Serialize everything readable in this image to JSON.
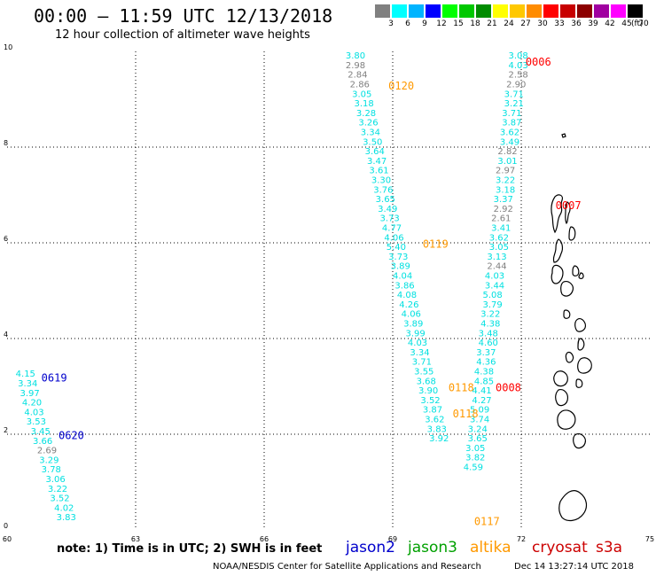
{
  "header": {
    "title": "00:00 – 11:59 UTC 12/13/2018",
    "subtitle": "12 hour collection of altimeter wave heights"
  },
  "colorbar": {
    "swatches": [
      {
        "color": "#808080",
        "label": "3"
      },
      {
        "color": "#00ffff",
        "label": "6"
      },
      {
        "color": "#00b4ff",
        "label": "9"
      },
      {
        "color": "#0000ff",
        "label": "12"
      },
      {
        "color": "#00ff00",
        "label": "15"
      },
      {
        "color": "#00c800",
        "label": "18"
      },
      {
        "color": "#008c00",
        "label": "21"
      },
      {
        "color": "#ffff00",
        "label": "24"
      },
      {
        "color": "#ffc800",
        "label": "27"
      },
      {
        "color": "#ff8c00",
        "label": "30"
      },
      {
        "color": "#ff0000",
        "label": "33"
      },
      {
        "color": "#c80000",
        "label": "36"
      },
      {
        "color": "#8c0000",
        "label": "39"
      },
      {
        "color": "#a000a0",
        "label": "42"
      },
      {
        "color": "#ff00ff",
        "label": "45"
      },
      {
        "color": "#000000",
        "label": "70"
      }
    ],
    "unit": "(ft)"
  },
  "map": {
    "x_ticks": [
      "60",
      "63",
      "66",
      "69",
      "72",
      "75"
    ],
    "y_ticks": [
      "0",
      "2",
      "4",
      "6",
      "8",
      "10"
    ],
    "lon_range": [
      60,
      75
    ],
    "lat_range": [
      0,
      10
    ],
    "track_labels": [
      {
        "text": "0006",
        "color": "#ff0000",
        "lon": 72.1,
        "lat": 9.7
      },
      {
        "text": "0120",
        "color": "#ff9900",
        "lon": 68.9,
        "lat": 9.2
      },
      {
        "text": "0007",
        "color": "#ff0000",
        "lon": 72.8,
        "lat": 6.7
      },
      {
        "text": "0119",
        "color": "#ff9900",
        "lon": 69.7,
        "lat": 5.9
      },
      {
        "text": "0619",
        "color": "#0000cc",
        "lon": 60.8,
        "lat": 3.1
      },
      {
        "text": "0620",
        "color": "#0000cc",
        "lon": 61.2,
        "lat": 1.9
      },
      {
        "text": "0118",
        "color": "#ff9900",
        "lon": 70.3,
        "lat": 2.9
      },
      {
        "text": "0008",
        "color": "#ff0000",
        "lon": 71.4,
        "lat": 2.9
      },
      {
        "text": "0118",
        "color": "#ff9900",
        "lon": 70.4,
        "lat": 2.35
      },
      {
        "text": "0117",
        "color": "#ff9900",
        "lon": 70.9,
        "lat": 0.1
      }
    ],
    "wave_heights": [
      {
        "v": "3.80",
        "c": "#00e0e0",
        "lon": 67.9,
        "lat": 9.85
      },
      {
        "v": "2.98",
        "c": "#808080",
        "lon": 67.9,
        "lat": 9.65
      },
      {
        "v": "2.84",
        "c": "#808080",
        "lon": 67.95,
        "lat": 9.45
      },
      {
        "v": "2.86",
        "c": "#808080",
        "lon": 68.0,
        "lat": 9.25
      },
      {
        "v": "3.05",
        "c": "#00e0e0",
        "lon": 68.05,
        "lat": 9.05
      },
      {
        "v": "3.18",
        "c": "#00e0e0",
        "lon": 68.1,
        "lat": 8.85
      },
      {
        "v": "3.28",
        "c": "#00e0e0",
        "lon": 68.15,
        "lat": 8.65
      },
      {
        "v": "3.26",
        "c": "#00e0e0",
        "lon": 68.2,
        "lat": 8.45
      },
      {
        "v": "3.34",
        "c": "#00e0e0",
        "lon": 68.25,
        "lat": 8.25
      },
      {
        "v": "3.50",
        "c": "#00e0e0",
        "lon": 68.3,
        "lat": 8.05
      },
      {
        "v": "3.64",
        "c": "#00e0e0",
        "lon": 68.35,
        "lat": 7.85
      },
      {
        "v": "3.47",
        "c": "#00e0e0",
        "lon": 68.4,
        "lat": 7.65
      },
      {
        "v": "3.61",
        "c": "#00e0e0",
        "lon": 68.45,
        "lat": 7.45
      },
      {
        "v": "3.30",
        "c": "#00e0e0",
        "lon": 68.5,
        "lat": 7.25
      },
      {
        "v": "3.76",
        "c": "#00e0e0",
        "lon": 68.55,
        "lat": 7.05
      },
      {
        "v": "3.65",
        "c": "#00e0e0",
        "lon": 68.6,
        "lat": 6.85
      },
      {
        "v": "3.49",
        "c": "#00e0e0",
        "lon": 68.65,
        "lat": 6.65
      },
      {
        "v": "3.73",
        "c": "#00e0e0",
        "lon": 68.7,
        "lat": 6.45
      },
      {
        "v": "4.77",
        "c": "#00e0e0",
        "lon": 68.75,
        "lat": 6.25
      },
      {
        "v": "4.06",
        "c": "#00e0e0",
        "lon": 68.8,
        "lat": 6.05
      },
      {
        "v": "5.40",
        "c": "#00e0e0",
        "lon": 68.85,
        "lat": 5.85
      },
      {
        "v": "3.73",
        "c": "#00e0e0",
        "lon": 68.9,
        "lat": 5.65
      },
      {
        "v": "3.89",
        "c": "#00e0e0",
        "lon": 68.95,
        "lat": 5.45
      },
      {
        "v": "4.04",
        "c": "#00e0e0",
        "lon": 69.0,
        "lat": 5.25
      },
      {
        "v": "3.86",
        "c": "#00e0e0",
        "lon": 69.05,
        "lat": 5.05
      },
      {
        "v": "4.08",
        "c": "#00e0e0",
        "lon": 69.1,
        "lat": 4.85
      },
      {
        "v": "4.26",
        "c": "#00e0e0",
        "lon": 69.15,
        "lat": 4.65
      },
      {
        "v": "4.06",
        "c": "#00e0e0",
        "lon": 69.2,
        "lat": 4.45
      },
      {
        "v": "3.89",
        "c": "#00e0e0",
        "lon": 69.25,
        "lat": 4.25
      },
      {
        "v": "3.99",
        "c": "#00e0e0",
        "lon": 69.3,
        "lat": 4.05
      },
      {
        "v": "4.03",
        "c": "#00e0e0",
        "lon": 69.35,
        "lat": 3.85
      },
      {
        "v": "3.34",
        "c": "#00e0e0",
        "lon": 69.4,
        "lat": 3.65
      },
      {
        "v": "3.71",
        "c": "#00e0e0",
        "lon": 69.45,
        "lat": 3.45
      },
      {
        "v": "3.55",
        "c": "#00e0e0",
        "lon": 69.5,
        "lat": 3.25
      },
      {
        "v": "3.68",
        "c": "#00e0e0",
        "lon": 69.55,
        "lat": 3.05
      },
      {
        "v": "3.90",
        "c": "#00e0e0",
        "lon": 69.6,
        "lat": 2.85
      },
      {
        "v": "3.52",
        "c": "#00e0e0",
        "lon": 69.65,
        "lat": 2.65
      },
      {
        "v": "3.87",
        "c": "#00e0e0",
        "lon": 69.7,
        "lat": 2.45
      },
      {
        "v": "3.62",
        "c": "#00e0e0",
        "lon": 69.75,
        "lat": 2.25
      },
      {
        "v": "3.83",
        "c": "#00e0e0",
        "lon": 69.8,
        "lat": 2.05
      },
      {
        "v": "3.92",
        "c": "#00e0e0",
        "lon": 69.85,
        "lat": 1.85
      },
      {
        "v": "3.08",
        "c": "#00e0e0",
        "lon": 71.7,
        "lat": 9.85
      },
      {
        "v": "4.03",
        "c": "#00e0e0",
        "lon": 71.7,
        "lat": 9.65
      },
      {
        "v": "2.58",
        "c": "#808080",
        "lon": 71.7,
        "lat": 9.45
      },
      {
        "v": "2.90",
        "c": "#808080",
        "lon": 71.65,
        "lat": 9.25
      },
      {
        "v": "3.71",
        "c": "#00e0e0",
        "lon": 71.6,
        "lat": 9.05
      },
      {
        "v": "3.21",
        "c": "#00e0e0",
        "lon": 71.6,
        "lat": 8.85
      },
      {
        "v": "3.71",
        "c": "#00e0e0",
        "lon": 71.55,
        "lat": 8.65
      },
      {
        "v": "3.87",
        "c": "#00e0e0",
        "lon": 71.55,
        "lat": 8.45
      },
      {
        "v": "3.62",
        "c": "#00e0e0",
        "lon": 71.5,
        "lat": 8.25
      },
      {
        "v": "3.49",
        "c": "#00e0e0",
        "lon": 71.5,
        "lat": 8.05
      },
      {
        "v": "2.82",
        "c": "#808080",
        "lon": 71.45,
        "lat": 7.85
      },
      {
        "v": "3.01",
        "c": "#00e0e0",
        "lon": 71.45,
        "lat": 7.65
      },
      {
        "v": "2.97",
        "c": "#808080",
        "lon": 71.4,
        "lat": 7.45
      },
      {
        "v": "3.22",
        "c": "#00e0e0",
        "lon": 71.4,
        "lat": 7.25
      },
      {
        "v": "3.18",
        "c": "#00e0e0",
        "lon": 71.4,
        "lat": 7.05
      },
      {
        "v": "3.37",
        "c": "#00e0e0",
        "lon": 71.35,
        "lat": 6.85
      },
      {
        "v": "2.92",
        "c": "#808080",
        "lon": 71.35,
        "lat": 6.65
      },
      {
        "v": "2.61",
        "c": "#808080",
        "lon": 71.3,
        "lat": 6.45
      },
      {
        "v": "3.41",
        "c": "#00e0e0",
        "lon": 71.3,
        "lat": 6.25
      },
      {
        "v": "3.62",
        "c": "#00e0e0",
        "lon": 71.25,
        "lat": 6.05
      },
      {
        "v": "3.05",
        "c": "#00e0e0",
        "lon": 71.25,
        "lat": 5.85
      },
      {
        "v": "3.13",
        "c": "#00e0e0",
        "lon": 71.2,
        "lat": 5.65
      },
      {
        "v": "2.44",
        "c": "#808080",
        "lon": 71.2,
        "lat": 5.45
      },
      {
        "v": "4.03",
        "c": "#00e0e0",
        "lon": 71.15,
        "lat": 5.25
      },
      {
        "v": "3.44",
        "c": "#00e0e0",
        "lon": 71.15,
        "lat": 5.05
      },
      {
        "v": "5.08",
        "c": "#00e0e0",
        "lon": 71.1,
        "lat": 4.85
      },
      {
        "v": "3.79",
        "c": "#00e0e0",
        "lon": 71.1,
        "lat": 4.65
      },
      {
        "v": "3.22",
        "c": "#00e0e0",
        "lon": 71.05,
        "lat": 4.45
      },
      {
        "v": "4.38",
        "c": "#00e0e0",
        "lon": 71.05,
        "lat": 4.25
      },
      {
        "v": "3.48",
        "c": "#00e0e0",
        "lon": 71.0,
        "lat": 4.05
      },
      {
        "v": "4.60",
        "c": "#00e0e0",
        "lon": 71.0,
        "lat": 3.85
      },
      {
        "v": "3.37",
        "c": "#00e0e0",
        "lon": 70.95,
        "lat": 3.65
      },
      {
        "v": "4.36",
        "c": "#00e0e0",
        "lon": 70.95,
        "lat": 3.45
      },
      {
        "v": "4.38",
        "c": "#00e0e0",
        "lon": 70.9,
        "lat": 3.25
      },
      {
        "v": "4.85",
        "c": "#00e0e0",
        "lon": 70.9,
        "lat": 3.05
      },
      {
        "v": "4.41",
        "c": "#00e0e0",
        "lon": 70.85,
        "lat": 2.85
      },
      {
        "v": "4.27",
        "c": "#00e0e0",
        "lon": 70.85,
        "lat": 2.65
      },
      {
        "v": "5.09",
        "c": "#00e0e0",
        "lon": 70.8,
        "lat": 2.45
      },
      {
        "v": "3.74",
        "c": "#00e0e0",
        "lon": 70.8,
        "lat": 2.25
      },
      {
        "v": "3.24",
        "c": "#00e0e0",
        "lon": 70.75,
        "lat": 2.05
      },
      {
        "v": "3.65",
        "c": "#00e0e0",
        "lon": 70.75,
        "lat": 1.85
      },
      {
        "v": "3.05",
        "c": "#00e0e0",
        "lon": 70.7,
        "lat": 1.65
      },
      {
        "v": "3.82",
        "c": "#00e0e0",
        "lon": 70.7,
        "lat": 1.45
      },
      {
        "v": "4.59",
        "c": "#00e0e0",
        "lon": 70.65,
        "lat": 1.25
      },
      {
        "v": "4.15",
        "c": "#00e0e0",
        "lon": 60.2,
        "lat": 3.2
      },
      {
        "v": "3.34",
        "c": "#00e0e0",
        "lon": 60.25,
        "lat": 3.0
      },
      {
        "v": "3.97",
        "c": "#00e0e0",
        "lon": 60.3,
        "lat": 2.8
      },
      {
        "v": "4.20",
        "c": "#00e0e0",
        "lon": 60.35,
        "lat": 2.6
      },
      {
        "v": "4.03",
        "c": "#00e0e0",
        "lon": 60.4,
        "lat": 2.4
      },
      {
        "v": "3.53",
        "c": "#00e0e0",
        "lon": 60.45,
        "lat": 2.2
      },
      {
        "v": "3.45",
        "c": "#00e0e0",
        "lon": 60.55,
        "lat": 2.0
      },
      {
        "v": "3.66",
        "c": "#00e0e0",
        "lon": 60.6,
        "lat": 1.8
      },
      {
        "v": "2.69",
        "c": "#808080",
        "lon": 60.7,
        "lat": 1.6
      },
      {
        "v": "3.29",
        "c": "#00e0e0",
        "lon": 60.75,
        "lat": 1.4
      },
      {
        "v": "3.78",
        "c": "#00e0e0",
        "lon": 60.8,
        "lat": 1.2
      },
      {
        "v": "3.06",
        "c": "#00e0e0",
        "lon": 60.9,
        "lat": 1.0
      },
      {
        "v": "3.22",
        "c": "#00e0e0",
        "lon": 60.95,
        "lat": 0.8
      },
      {
        "v": "3.52",
        "c": "#00e0e0",
        "lon": 61.0,
        "lat": 0.6
      },
      {
        "v": "4.02",
        "c": "#00e0e0",
        "lon": 61.1,
        "lat": 0.4
      },
      {
        "v": "3.83",
        "c": "#00e0e0",
        "lon": 61.15,
        "lat": 0.2
      }
    ]
  },
  "footer": {
    "note": "note: 1) Time is in UTC; 2) SWH is in feet",
    "legend": [
      {
        "name": "jason2",
        "color": "#0000cc"
      },
      {
        "name": "jason3",
        "color": "#00a000"
      },
      {
        "name": "altika",
        "color": "#ff9900"
      },
      {
        "name": "cryosat",
        "color": "#cc0000"
      },
      {
        "name": "s3a",
        "color": "#cc0000"
      }
    ],
    "credit": "NOAA/NESDIS Center for Satellite Applications and Research",
    "timestamp": "Dec 14 13:27:14 UTC 2018"
  }
}
